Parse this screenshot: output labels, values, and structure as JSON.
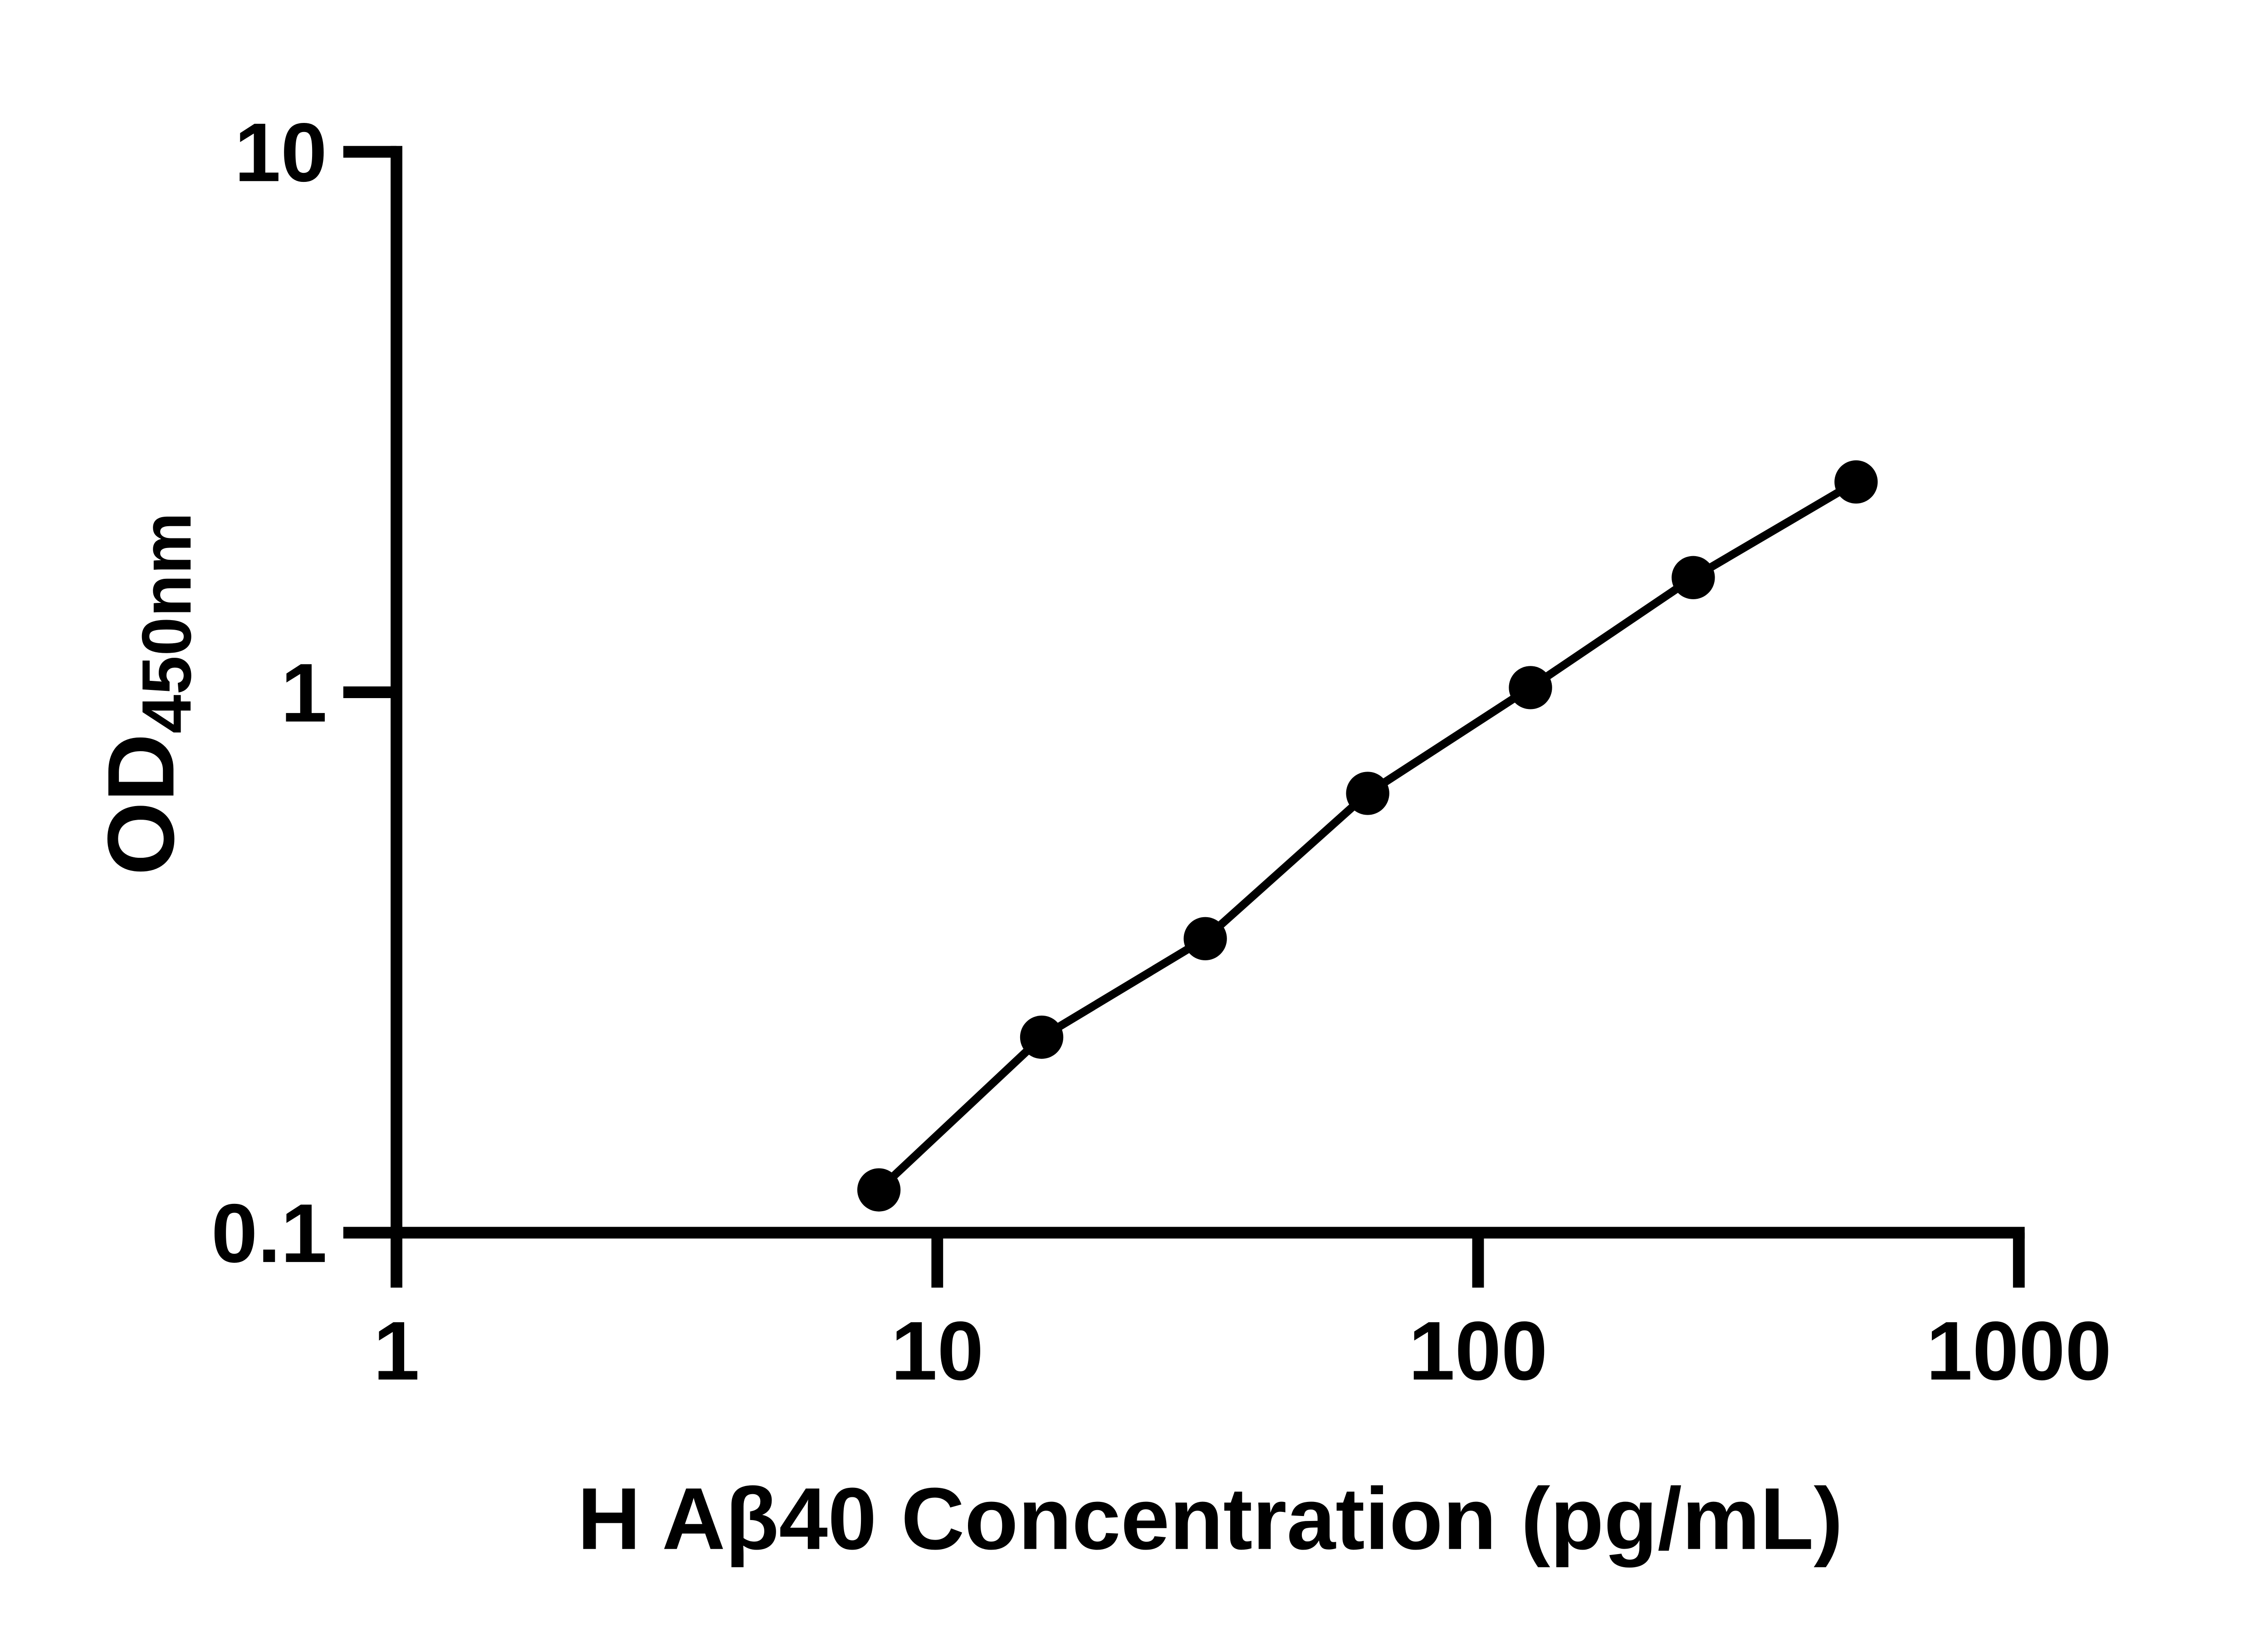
{
  "chart_data": {
    "type": "line",
    "title": "",
    "xlabel": "H Aβ40 Concentration (pg/mL)",
    "ylabel_main": "OD",
    "ylabel_sub": "450nm",
    "x_scale": "log",
    "y_scale": "log",
    "xlim": [
      1,
      1000
    ],
    "ylim": [
      0.1,
      10
    ],
    "grid": false,
    "legend_position": "none",
    "x_ticks": [
      {
        "value": 1,
        "label": "1"
      },
      {
        "value": 10,
        "label": "10"
      },
      {
        "value": 100,
        "label": "100"
      },
      {
        "value": 1000,
        "label": "1000"
      }
    ],
    "y_ticks": [
      {
        "value": 0.1,
        "label": "0.1"
      },
      {
        "value": 1,
        "label": "1"
      },
      {
        "value": 10,
        "label": "10"
      }
    ],
    "series": [
      {
        "marker": "circle",
        "color": "#000000",
        "x": [
          7.8,
          15.6,
          31.3,
          62.5,
          125,
          250,
          500
        ],
        "y": [
          0.12,
          0.23,
          0.35,
          0.65,
          1.02,
          1.63,
          2.45
        ]
      }
    ]
  },
  "colors": {
    "foreground": "#000000",
    "background": "#ffffff"
  }
}
